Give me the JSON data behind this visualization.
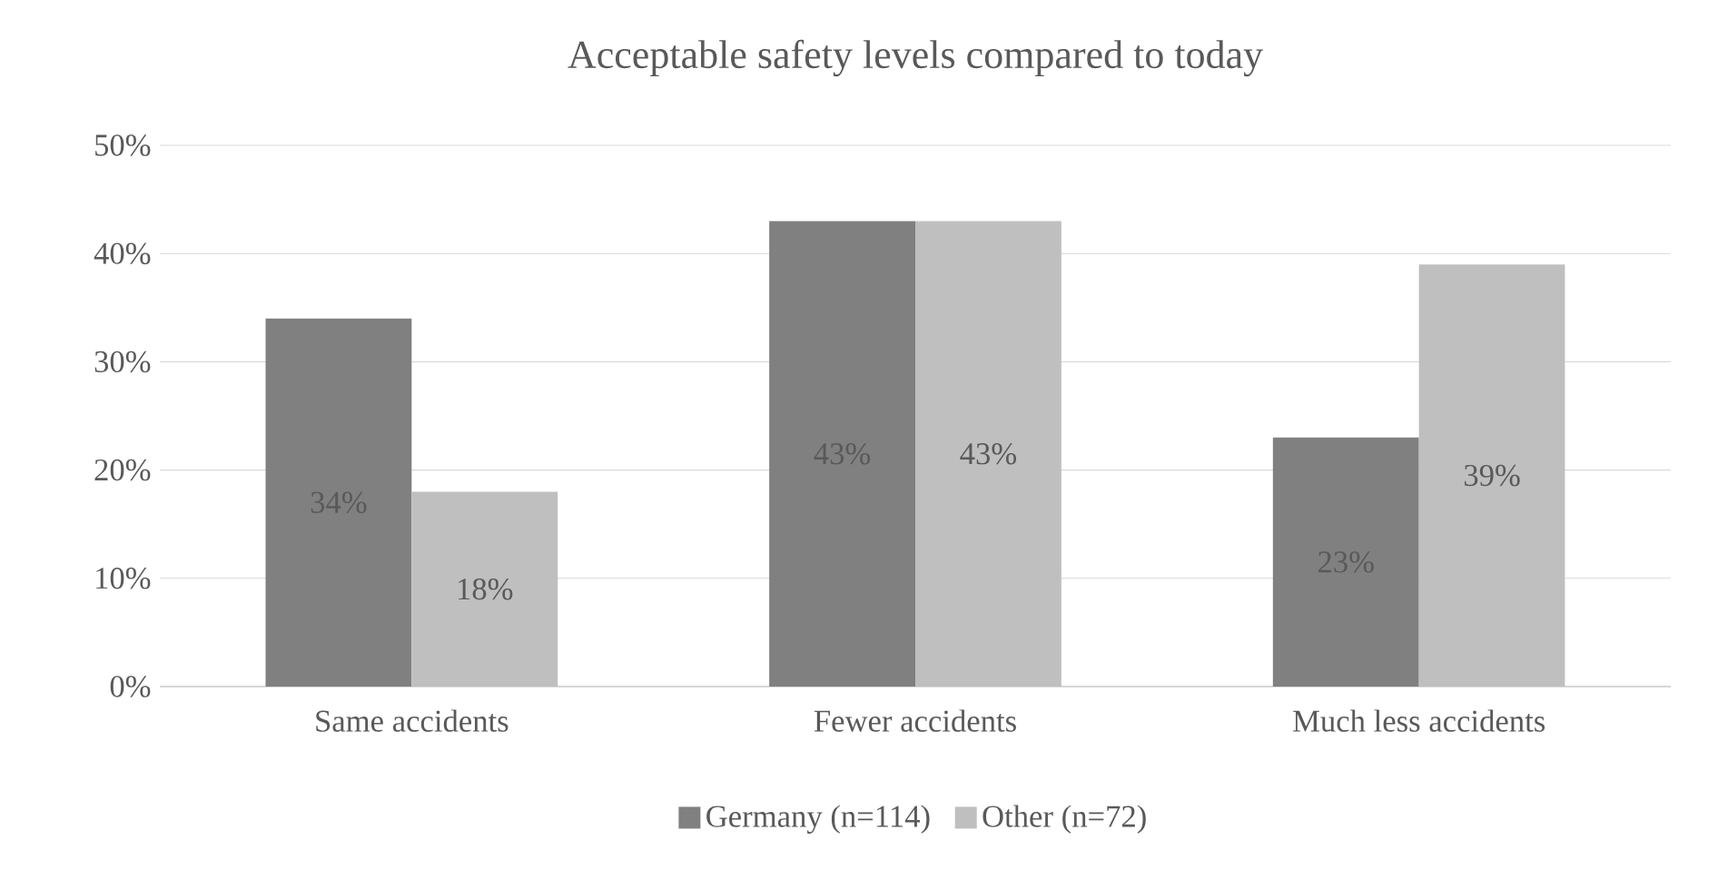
{
  "chart_data": {
    "type": "bar",
    "title": "Acceptable safety levels compared to today",
    "categories": [
      "Same accidents",
      "Fewer accidents",
      "Much less accidents"
    ],
    "series": [
      {
        "name": "Germany (n=114)",
        "color": "#808080",
        "values": [
          34,
          43,
          23
        ],
        "value_labels": [
          "34%",
          "43%",
          "23%"
        ]
      },
      {
        "name": "Other (n=72)",
        "color": "#bfbfbf",
        "values": [
          18,
          43,
          39
        ],
        "value_labels": [
          "18%",
          "43%",
          "39%"
        ]
      }
    ],
    "ylim": [
      0,
      50
    ],
    "yticks": [
      {
        "value": 0,
        "label": "0%"
      },
      {
        "value": 10,
        "label": "10%"
      },
      {
        "value": 20,
        "label": "20%"
      },
      {
        "value": 30,
        "label": "30%"
      },
      {
        "value": 40,
        "label": "40%"
      },
      {
        "value": 50,
        "label": "50%"
      }
    ],
    "grid": "y",
    "legend": "bottom"
  }
}
